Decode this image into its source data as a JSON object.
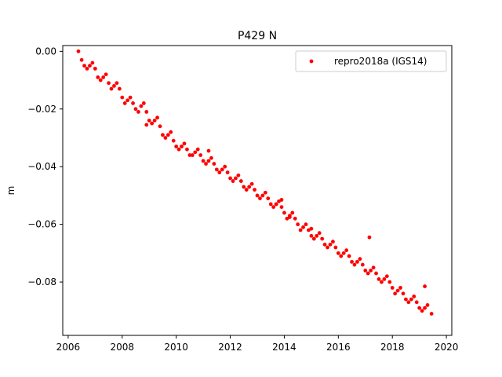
{
  "chart_data": {
    "type": "scatter",
    "title": "P429 N",
    "xlabel": "",
    "ylabel": "m",
    "xlim": [
      2005.8,
      2020.2
    ],
    "ylim": [
      -0.0985,
      0.002
    ],
    "xticks": [
      2006,
      2008,
      2010,
      2012,
      2014,
      2016,
      2018,
      2020
    ],
    "xtick_labels": [
      "2006",
      "2008",
      "2010",
      "2012",
      "2014",
      "2016",
      "2018",
      "2020"
    ],
    "yticks": [
      0.0,
      -0.02,
      -0.04,
      -0.06,
      -0.08
    ],
    "ytick_labels": [
      "0.00",
      "−0.02",
      "−0.04",
      "−0.06",
      "−0.08"
    ],
    "grid": false,
    "legend_position": "upper right",
    "series": [
      {
        "name": "repro2018a (IGS14)",
        "color": "#ff0000",
        "marker": "dot",
        "x": [
          2006.38,
          2006.5,
          2006.6,
          2006.7,
          2006.8,
          2006.9,
          2007.0,
          2007.1,
          2007.2,
          2007.3,
          2007.4,
          2007.5,
          2007.6,
          2007.7,
          2007.8,
          2007.9,
          2008.0,
          2008.1,
          2008.2,
          2008.3,
          2008.4,
          2008.5,
          2008.6,
          2008.7,
          2008.8,
          2008.9,
          2009.0,
          2009.1,
          2009.2,
          2009.3,
          2009.4,
          2009.5,
          2009.6,
          2009.7,
          2009.8,
          2009.9,
          2010.0,
          2010.1,
          2010.2,
          2010.3,
          2010.4,
          2010.5,
          2010.6,
          2010.7,
          2010.8,
          2010.9,
          2011.0,
          2011.1,
          2011.2,
          2011.3,
          2011.4,
          2011.5,
          2011.6,
          2011.7,
          2011.8,
          2011.9,
          2012.0,
          2012.1,
          2012.2,
          2012.3,
          2012.4,
          2012.5,
          2012.6,
          2012.7,
          2012.8,
          2012.9,
          2013.0,
          2013.1,
          2013.2,
          2013.3,
          2013.4,
          2013.5,
          2013.6,
          2013.7,
          2013.8,
          2013.9,
          2014.0,
          2014.1,
          2014.2,
          2014.3,
          2014.4,
          2014.5,
          2014.6,
          2014.7,
          2014.8,
          2014.9,
          2015.0,
          2015.1,
          2015.2,
          2015.3,
          2015.4,
          2015.5,
          2015.6,
          2015.7,
          2015.8,
          2015.9,
          2016.0,
          2016.1,
          2016.2,
          2016.3,
          2016.4,
          2016.5,
          2016.6,
          2016.7,
          2016.8,
          2016.9,
          2017.0,
          2017.1,
          2017.2,
          2017.3,
          2017.4,
          2017.5,
          2017.6,
          2017.7,
          2017.8,
          2017.9,
          2018.0,
          2018.1,
          2018.2,
          2018.3,
          2018.4,
          2018.5,
          2018.6,
          2018.7,
          2018.8,
          2018.9,
          2019.0,
          2019.1,
          2019.2,
          2019.3,
          2019.45,
          2008.9,
          2013.7,
          2013.9,
          2015.0,
          2017.15,
          2019.2,
          2011.2,
          2014.2
        ],
        "y": [
          0.0,
          -0.003,
          -0.005,
          -0.006,
          -0.005,
          -0.004,
          -0.006,
          -0.009,
          -0.01,
          -0.009,
          -0.008,
          -0.011,
          -0.013,
          -0.012,
          -0.011,
          -0.013,
          -0.016,
          -0.018,
          -0.017,
          -0.016,
          -0.018,
          -0.02,
          -0.021,
          -0.019,
          -0.018,
          -0.021,
          -0.024,
          -0.025,
          -0.024,
          -0.023,
          -0.026,
          -0.029,
          -0.03,
          -0.029,
          -0.028,
          -0.031,
          -0.033,
          -0.034,
          -0.033,
          -0.032,
          -0.034,
          -0.036,
          -0.036,
          -0.035,
          -0.034,
          -0.036,
          -0.038,
          -0.039,
          -0.038,
          -0.037,
          -0.039,
          -0.041,
          -0.042,
          -0.041,
          -0.04,
          -0.042,
          -0.044,
          -0.045,
          -0.044,
          -0.043,
          -0.045,
          -0.047,
          -0.048,
          -0.047,
          -0.046,
          -0.048,
          -0.05,
          -0.051,
          -0.05,
          -0.049,
          -0.051,
          -0.053,
          -0.054,
          -0.053,
          -0.052,
          -0.054,
          -0.056,
          -0.058,
          -0.057,
          -0.056,
          -0.058,
          -0.06,
          -0.062,
          -0.061,
          -0.06,
          -0.062,
          -0.064,
          -0.065,
          -0.064,
          -0.063,
          -0.065,
          -0.067,
          -0.068,
          -0.067,
          -0.066,
          -0.068,
          -0.07,
          -0.071,
          -0.07,
          -0.069,
          -0.071,
          -0.073,
          -0.074,
          -0.073,
          -0.072,
          -0.074,
          -0.076,
          -0.077,
          -0.076,
          -0.075,
          -0.077,
          -0.079,
          -0.08,
          -0.079,
          -0.078,
          -0.08,
          -0.082,
          -0.084,
          -0.083,
          -0.082,
          -0.084,
          -0.086,
          -0.087,
          -0.086,
          -0.085,
          -0.087,
          -0.089,
          -0.09,
          -0.089,
          -0.088,
          -0.091,
          -0.0255,
          -0.053,
          -0.0515,
          -0.0615,
          -0.0645,
          -0.0815,
          -0.0345,
          -0.0575
        ]
      }
    ]
  }
}
